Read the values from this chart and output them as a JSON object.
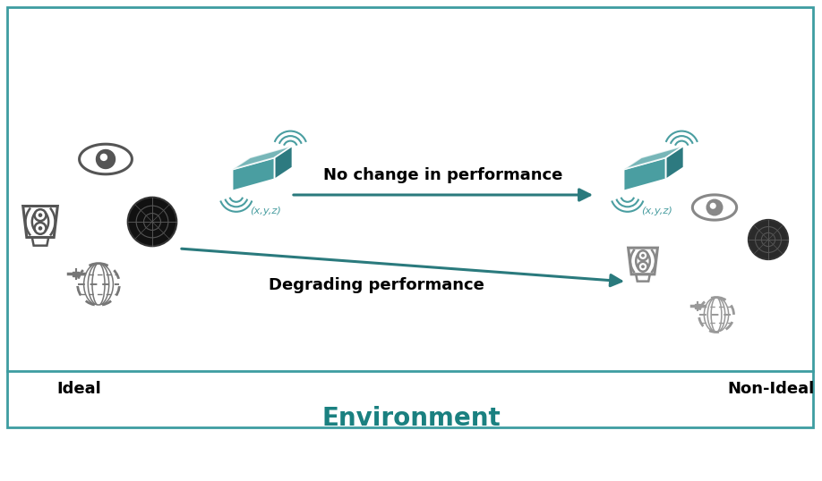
{
  "bg_color": "#ffffff",
  "border_color": "#3d9da1",
  "imu_color": "#4a9ea1",
  "imu_dark": "#2d7a80",
  "arrow_color": "#2a7a7d",
  "sensor_color": "#555555",
  "sensor_color_faded": "#888888",
  "radar_dark": "#111111",
  "radar_faded": "#444444",
  "text_color_black": "#000000",
  "text_color_teal": "#1a8080",
  "label_ideal": "Ideal",
  "label_non_ideal": "Non-Ideal",
  "label_environment": "Environment",
  "label_no_change": "No change in performance",
  "label_degrading": "Degrading performance",
  "label_xyz": "(x,y,z)",
  "title_fontsize": 20,
  "label_fontsize": 13,
  "arrow_label_fontsize": 13
}
